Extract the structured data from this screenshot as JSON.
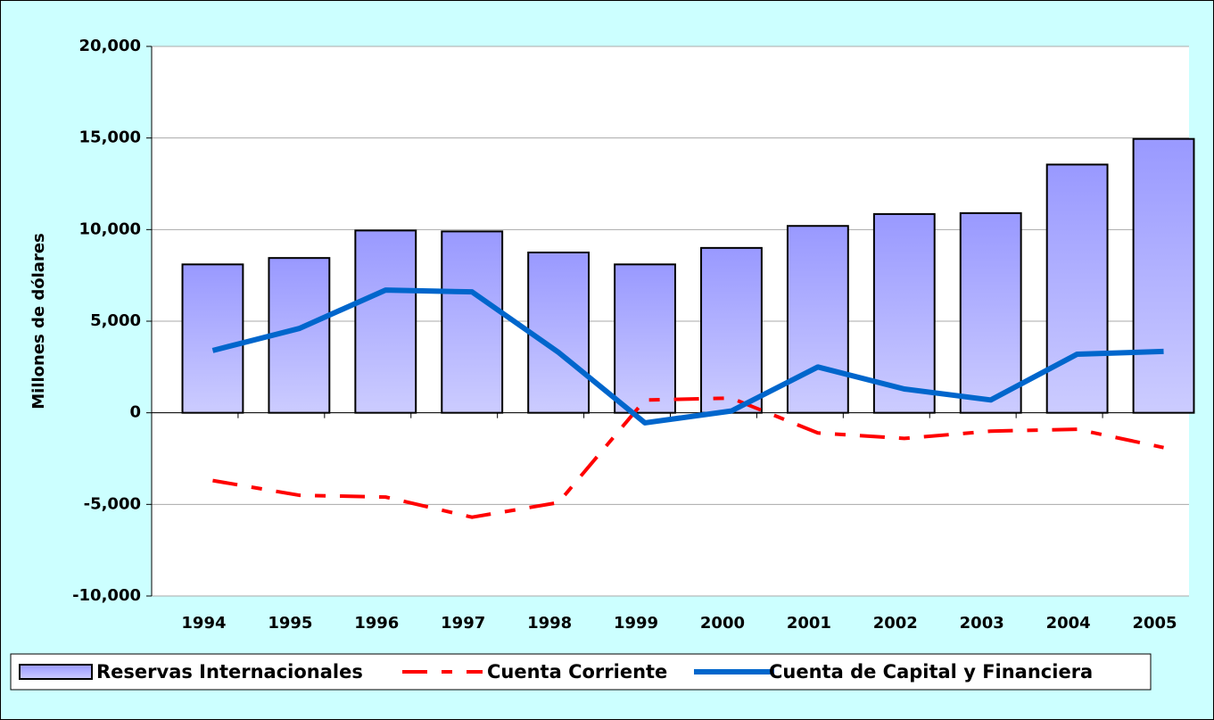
{
  "chart_data": {
    "type": "bar_line",
    "ylabel": "Millones de dólares",
    "categories": [
      "1994",
      "1995",
      "1996",
      "1997",
      "1998",
      "1999",
      "2000",
      "2001",
      "2002",
      "2003",
      "2004",
      "2005"
    ],
    "series": [
      {
        "name": "Reservas Internacionales",
        "kind": "bar",
        "color": "#9999ff",
        "values": [
          8100,
          8450,
          9950,
          9900,
          8750,
          8100,
          9000,
          10200,
          10850,
          10900,
          13550,
          14950
        ]
      },
      {
        "name": "Cuenta Corriente",
        "kind": "line",
        "style": "dashed",
        "color": "#ff0000",
        "values": [
          -3700,
          -4500,
          -4600,
          -5700,
          -4900,
          700,
          800,
          -1100,
          -1400,
          -1000,
          -900,
          -1900
        ]
      },
      {
        "name": "Cuenta de Capital y Financiera",
        "kind": "line",
        "style": "solid",
        "color": "#0066cc",
        "values": [
          3400,
          4600,
          6700,
          6600,
          3300,
          -550,
          100,
          2500,
          1300,
          700,
          3200,
          3350
        ]
      }
    ],
    "ylim": [
      -10000,
      20000
    ],
    "yticks": [
      {
        "value": -10000,
        "label": "-10,000"
      },
      {
        "value": -5000,
        "label": "-5,000"
      },
      0,
      {
        "value": 5000,
        "label": "5,000"
      },
      {
        "value": 10000,
        "label": "10,000"
      },
      {
        "value": 15000,
        "label": "15,000"
      },
      {
        "value": 20000,
        "label": "20,000"
      }
    ],
    "grid": true,
    "legend": "bottom"
  }
}
